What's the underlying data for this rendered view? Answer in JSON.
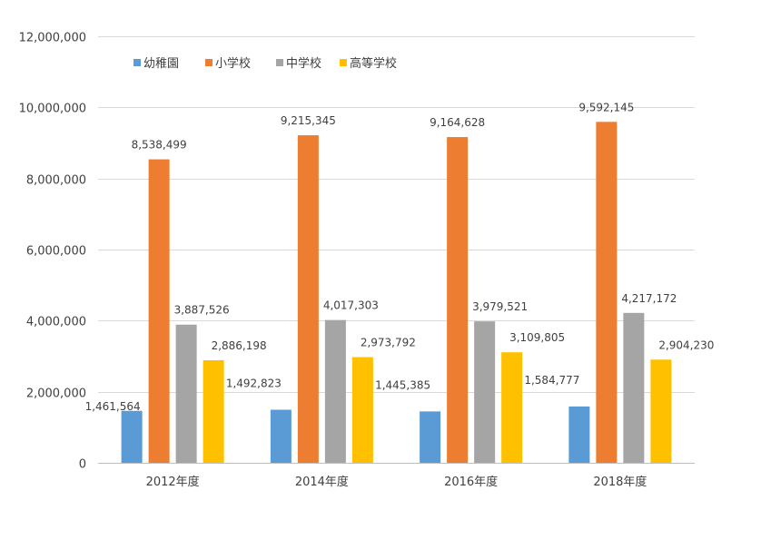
{
  "chart_data": {
    "type": "bar",
    "title": "",
    "xlabel": "",
    "ylabel": "",
    "categories": [
      "2012年度",
      "2014年度",
      "2016年度",
      "2018年度"
    ],
    "ylim": [
      0,
      12000000
    ],
    "yticks": [
      0,
      2000000,
      4000000,
      6000000,
      8000000,
      10000000,
      12000000
    ],
    "ytick_labels": [
      "0",
      "2,000,000",
      "4,000,000",
      "6,000,000",
      "8,000,000",
      "10,000,000",
      "12,000,000"
    ],
    "grid": true,
    "legend_position": "top-left",
    "series": [
      {
        "name": "幼稚園",
        "color": "#5b9bd5",
        "values": [
          1461564,
          1492823,
          1445385,
          1584777
        ],
        "labels": [
          "1,461,564",
          "1,492,823",
          "1,445,385",
          "1,584,777"
        ]
      },
      {
        "name": "小学校",
        "color": "#ed7d31",
        "values": [
          8538499,
          9215345,
          9164628,
          9592145
        ],
        "labels": [
          "8,538,499",
          "9,215,345",
          "9,164,628",
          "9,592,145"
        ]
      },
      {
        "name": "中学校",
        "color": "#a5a5a5",
        "values": [
          3887526,
          4017303,
          3979521,
          4217172
        ],
        "labels": [
          "3,887,526",
          "4,017,303",
          "3,979,521",
          "4,217,172"
        ]
      },
      {
        "name": "高等学校",
        "color": "#ffc000",
        "values": [
          2886198,
          2973792,
          3109805,
          2904230
        ],
        "labels": [
          "2,886,198",
          "2,973,792",
          "3,109,805",
          "2,904,230"
        ]
      }
    ]
  }
}
